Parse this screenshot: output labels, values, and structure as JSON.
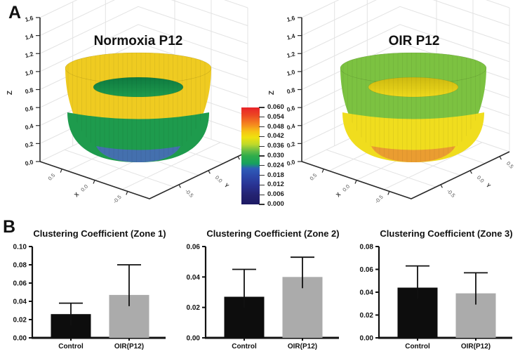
{
  "figure": {
    "panel_a_label": "A",
    "panel_b_label": "B",
    "background": "#ffffff"
  },
  "surface_plots": [
    {
      "title": "Normoxia P12",
      "z_label": "Z",
      "x_label": "X",
      "y_label": "Y",
      "z_ticks": [
        "0.0",
        "0.2",
        "0.4",
        "0.6",
        "0.8",
        "1.0",
        "1.2",
        "1.4",
        "1.6"
      ],
      "x_ticks": [
        "0.5",
        "0.0",
        "-0.5"
      ],
      "y_ticks": [
        "-0.5",
        "0.0",
        "0.5"
      ],
      "band_colors": {
        "top": "#EFCB21",
        "middle": "#1E9B4D",
        "bottom": "#4470AE",
        "inner_light": "#1E9B4D",
        "inner_dark": "#0E7A40"
      }
    },
    {
      "title": "OIR P12",
      "z_label": "Z",
      "x_label": "X",
      "y_label": "Y",
      "z_ticks": [
        "0.0",
        "0.2",
        "0.4",
        "0.6",
        "0.8",
        "1.0",
        "1.2",
        "1.4",
        "1.6"
      ],
      "x_ticks": [
        "0.5",
        "0.0",
        "-0.5"
      ],
      "y_ticks": [
        "-0.5",
        "0.0",
        "0.5"
      ],
      "band_colors": {
        "top": "#7CC241",
        "middle": "#F0DD1E",
        "bottom": "#EA9D31",
        "inner_light": "#EFD91C",
        "inner_dark": "#CDBA10"
      }
    }
  ],
  "colorbar": {
    "value_range": [
      0.0,
      0.06
    ],
    "tick_labels": [
      "0.060",
      "0.054",
      "0.048",
      "0.042",
      "0.036",
      "0.030",
      "0.024",
      "0.018",
      "0.012",
      "0.006",
      "0.000"
    ],
    "gradient_stops": [
      "#E82329 0%",
      "#EC4723 8%",
      "#F58B1F 18%",
      "#F6C515 25%",
      "#EFE20F 31%",
      "#BFD92B 38%",
      "#62BB46 45%",
      "#2FAD4A 50%",
      "#16A05F 58%",
      "#2E5CB8 63%",
      "#2C4AAB 70%",
      "#293393 80%",
      "#242372 90%",
      "#1D1A63 100%"
    ]
  },
  "chart_data": [
    {
      "type": "3d-surface",
      "title": "Normoxia P12",
      "x_range": [
        -0.5,
        0.5
      ],
      "y_range": [
        -0.5,
        0.5
      ],
      "z_range": [
        0,
        1.6
      ],
      "colormap_range": [
        0,
        0.06
      ],
      "bands_bottom_to_top": [
        {
          "color": "blue",
          "approx_clustering_value": 0.02
        },
        {
          "color": "green",
          "approx_clustering_value": 0.03
        },
        {
          "color": "yellow",
          "approx_clustering_value": 0.04
        }
      ]
    },
    {
      "type": "3d-surface",
      "title": "OIR P12",
      "x_range": [
        -0.5,
        0.5
      ],
      "y_range": [
        -0.5,
        0.5
      ],
      "z_range": [
        0,
        1.6
      ],
      "colormap_range": [
        0,
        0.06
      ],
      "bands_bottom_to_top": [
        {
          "color": "orange",
          "approx_clustering_value": 0.048
        },
        {
          "color": "yellow",
          "approx_clustering_value": 0.042
        },
        {
          "color": "light-green",
          "approx_clustering_value": 0.034
        }
      ]
    },
    {
      "type": "bar",
      "title": "Clustering Coefficient (Zone 1)",
      "categories": [
        "Control",
        "OIR(P12)"
      ],
      "values": [
        0.026,
        0.047
      ],
      "errors": [
        0.012,
        0.033
      ],
      "ylim": [
        0,
        0.1
      ],
      "yticks": [
        "0.00",
        "0.02",
        "0.04",
        "0.06",
        "0.08",
        "0.10"
      ],
      "bar_colors": [
        "#0D0D0D",
        "#ABABAB"
      ],
      "grid": false,
      "legend": "none"
    },
    {
      "type": "bar",
      "title": "Clustering Coefficient (Zone 2)",
      "categories": [
        "Control",
        "OIR(P12)"
      ],
      "values": [
        0.027,
        0.04
      ],
      "errors": [
        0.018,
        0.013
      ],
      "ylim": [
        0,
        0.06
      ],
      "yticks": [
        "0.00",
        "0.02",
        "0.04",
        "0.06"
      ],
      "bar_colors": [
        "#0D0D0D",
        "#ABABAB"
      ],
      "grid": false,
      "legend": "none"
    },
    {
      "type": "bar",
      "title": "Clustering Coefficient (Zone 3)",
      "categories": [
        "Control",
        "OIR(P12)"
      ],
      "values": [
        0.044,
        0.039
      ],
      "errors": [
        0.019,
        0.018
      ],
      "ylim": [
        0,
        0.08
      ],
      "yticks": [
        "0.00",
        "0.02",
        "0.04",
        "0.06",
        "0.08"
      ],
      "bar_colors": [
        "#0D0D0D",
        "#ABABAB"
      ],
      "grid": false,
      "legend": "none"
    }
  ]
}
